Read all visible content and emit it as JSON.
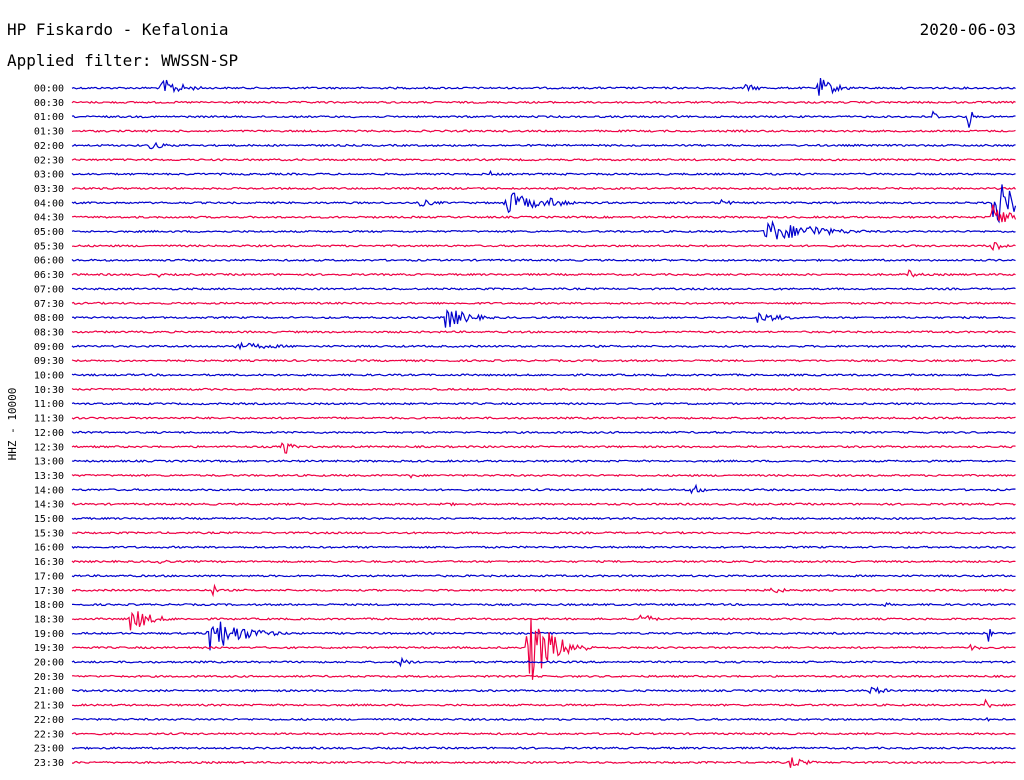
{
  "header": {
    "station": "HP Fiskardo - Kefalonia",
    "date": "2020-06-03",
    "filter_label": "Applied filter: WWSSN-SP"
  },
  "chart_data": {
    "type": "line",
    "title": "HP Fiskardo - Kefalonia",
    "subtitle": "Applied filter: WWSSN-SP",
    "date": "2020-06-03",
    "ylabel": "HHZ - 10000",
    "row_interval_minutes": 30,
    "row_labels": [
      "00:00",
      "00:30",
      "01:00",
      "01:30",
      "02:00",
      "02:30",
      "03:00",
      "03:30",
      "04:00",
      "04:30",
      "05:00",
      "05:30",
      "06:00",
      "06:30",
      "07:00",
      "07:30",
      "08:00",
      "08:30",
      "09:00",
      "09:30",
      "10:00",
      "10:30",
      "11:00",
      "11:30",
      "12:00",
      "12:30",
      "13:00",
      "13:30",
      "14:00",
      "14:30",
      "15:00",
      "15:30",
      "16:00",
      "16:30",
      "17:00",
      "17:30",
      "18:00",
      "18:30",
      "19:00",
      "19:30",
      "20:00",
      "20:30",
      "21:00",
      "21:30",
      "22:00",
      "22:30",
      "23:00",
      "23:30"
    ],
    "colors": [
      "#0000cc",
      "#ee0044"
    ],
    "grid": false,
    "legend": "none"
  }
}
